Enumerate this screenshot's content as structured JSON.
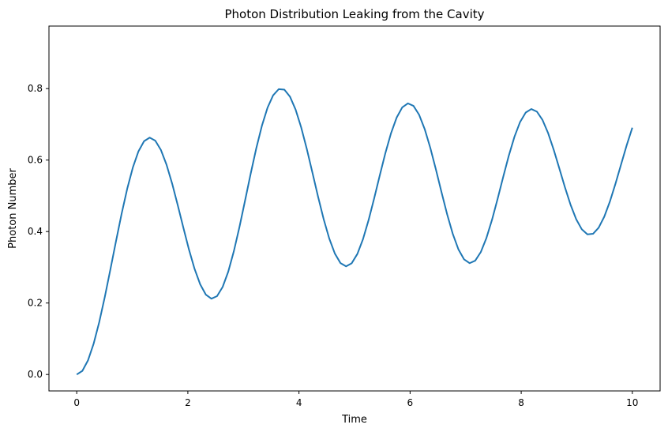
{
  "chart_data": {
    "type": "line",
    "title": "Photon Distribution Leaking from the Cavity",
    "xlabel": "Time",
    "ylabel": "Photon Number",
    "xlim": [
      -0.5,
      10.5
    ],
    "ylim": [
      -0.046,
      0.975
    ],
    "x_ticks": [
      0,
      2,
      4,
      6,
      8,
      10
    ],
    "y_ticks": [
      0.0,
      0.2,
      0.4,
      0.6,
      0.8
    ],
    "x_tick_labels": [
      "0",
      "2",
      "4",
      "6",
      "8",
      "10"
    ],
    "y_tick_labels": [
      "0.0",
      "0.2",
      "0.4",
      "0.6",
      "0.8"
    ],
    "grid": false,
    "legend": "none",
    "series": [
      {
        "color": "#1f77b4",
        "x": [
          0.0,
          0.101,
          0.202,
          0.303,
          0.404,
          0.505,
          0.606,
          0.707,
          0.808,
          0.909,
          1.01,
          1.111,
          1.212,
          1.313,
          1.414,
          1.515,
          1.616,
          1.717,
          1.818,
          1.919,
          2.02,
          2.121,
          2.222,
          2.323,
          2.424,
          2.525,
          2.626,
          2.727,
          2.828,
          2.929,
          3.03,
          3.131,
          3.232,
          3.333,
          3.434,
          3.535,
          3.636,
          3.737,
          3.838,
          3.939,
          4.04,
          4.141,
          4.242,
          4.343,
          4.444,
          4.545,
          4.646,
          4.747,
          4.848,
          4.949,
          5.051,
          5.152,
          5.253,
          5.354,
          5.455,
          5.556,
          5.657,
          5.758,
          5.859,
          5.96,
          6.061,
          6.162,
          6.263,
          6.364,
          6.465,
          6.566,
          6.667,
          6.768,
          6.869,
          6.97,
          7.071,
          7.172,
          7.273,
          7.374,
          7.475,
          7.576,
          7.677,
          7.778,
          7.879,
          7.98,
          8.081,
          8.182,
          8.283,
          8.384,
          8.485,
          8.586,
          8.687,
          8.788,
          8.889,
          8.99,
          9.091,
          9.192,
          9.293,
          9.394,
          9.495,
          9.596,
          9.697,
          9.798,
          9.899,
          10.0
        ],
        "y": [
          0.0,
          0.0101,
          0.0393,
          0.0856,
          0.146,
          0.2169,
          0.2941,
          0.3733,
          0.45,
          0.5199,
          0.5792,
          0.6245,
          0.6529,
          0.6628,
          0.6543,
          0.6283,
          0.5871,
          0.5343,
          0.4739,
          0.4108,
          0.3497,
          0.2955,
          0.2523,
          0.2236,
          0.2121,
          0.2192,
          0.2449,
          0.2877,
          0.345,
          0.4129,
          0.4869,
          0.562,
          0.6333,
          0.6961,
          0.7465,
          0.7813,
          0.7985,
          0.7971,
          0.7776,
          0.7414,
          0.6913,
          0.631,
          0.565,
          0.498,
          0.435,
          0.3805,
          0.3384,
          0.3117,
          0.3025,
          0.3113,
          0.3373,
          0.3786,
          0.432,
          0.4932,
          0.5576,
          0.6199,
          0.6752,
          0.7189,
          0.7475,
          0.7587,
          0.7516,
          0.7269,
          0.6867,
          0.6341,
          0.5735,
          0.5099,
          0.4482,
          0.3936,
          0.3505,
          0.3224,
          0.3115,
          0.3185,
          0.3427,
          0.382,
          0.4331,
          0.4919,
          0.5535,
          0.613,
          0.6655,
          0.7066,
          0.733,
          0.7428,
          0.7355,
          0.7121,
          0.6752,
          0.6284,
          0.5762,
          0.5234,
          0.4747,
          0.4344,
          0.4061,
          0.3921,
          0.3937,
          0.4107,
          0.4416,
          0.4838,
          0.5339,
          0.588,
          0.6417,
          0.6907
        ]
      }
    ]
  }
}
